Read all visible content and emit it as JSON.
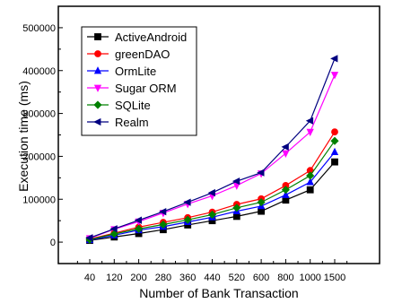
{
  "chart_data": {
    "type": "line",
    "title": "",
    "xlabel": "Number of Bank Transaction",
    "ylabel": "Execution time (ms)",
    "categories": [
      "40",
      "120",
      "200",
      "280",
      "360",
      "440",
      "520",
      "600",
      "800",
      "1000",
      "1500"
    ],
    "ylim": [
      -50000,
      550000
    ],
    "yticks": [
      0,
      100000,
      200000,
      300000,
      400000,
      500000
    ],
    "ytick_labels": [
      "0",
      "100000",
      "200000",
      "300000",
      "400000",
      "500000"
    ],
    "grid": false,
    "legend_position": "top-left",
    "series": [
      {
        "name": "ActiveAndroid",
        "color": "#000000",
        "marker": "square",
        "values": [
          4000,
          12000,
          20000,
          29000,
          40000,
          50000,
          60000,
          72000,
          98000,
          122000,
          187000
        ]
      },
      {
        "name": "greenDAO",
        "color": "#ff0000",
        "marker": "circle",
        "values": [
          7000,
          21000,
          35000,
          46000,
          57000,
          70000,
          88000,
          101000,
          132000,
          167000,
          257000
        ]
      },
      {
        "name": "OrmLite",
        "color": "#0000ff",
        "marker": "triangle-up",
        "values": [
          5000,
          16000,
          28000,
          36000,
          47000,
          58000,
          72000,
          84000,
          110000,
          140000,
          210000
        ]
      },
      {
        "name": "Sugar ORM",
        "color": "#ff00ff",
        "marker": "triangle-down",
        "values": [
          9000,
          30000,
          48000,
          68000,
          89000,
          108000,
          132000,
          160000,
          207000,
          257000,
          390000
        ]
      },
      {
        "name": "SQLite",
        "color": "#008000",
        "marker": "diamond",
        "values": [
          6000,
          19000,
          31000,
          41000,
          52000,
          64000,
          80000,
          93000,
          122000,
          155000,
          236000
        ]
      },
      {
        "name": "Realm",
        "color": "#000080",
        "marker": "triangle-left",
        "values": [
          10000,
          31000,
          51000,
          71000,
          93000,
          115000,
          142000,
          162000,
          222000,
          283000,
          428000
        ]
      }
    ]
  }
}
